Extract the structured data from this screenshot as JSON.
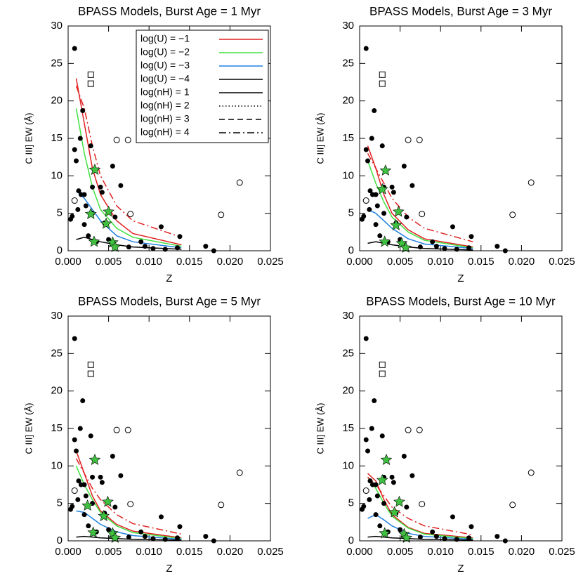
{
  "chart_data": [
    {
      "type": "scatter",
      "title": "BPASS Models, Burst Age = 1 Myr",
      "xlabel": "Z",
      "ylabel": "C III] EW (Å)",
      "xlim": [
        0,
        0.025
      ],
      "ylim": [
        0,
        30
      ],
      "xticks": [
        {
          "value": 0,
          "label": "0.000"
        },
        {
          "value": 0.005,
          "label": "0.005"
        },
        {
          "value": 0.01,
          "label": "0.010"
        },
        {
          "value": 0.015,
          "label": "0.015"
        },
        {
          "value": 0.02,
          "label": "0.020"
        },
        {
          "value": 0.025,
          "label": "0.025"
        }
      ],
      "yticks": [
        0,
        5,
        10,
        15,
        20,
        25,
        30
      ],
      "points": {
        "x": [
          0.0003,
          0.0005,
          0.0008,
          0.0008,
          0.001,
          0.0012,
          0.0013,
          0.0015,
          0.0016,
          0.0018,
          0.002,
          0.002,
          0.0022,
          0.0025,
          0.0028,
          0.003,
          0.003,
          0.0035,
          0.004,
          0.0042,
          0.0045,
          0.005,
          0.0055,
          0.0058,
          0.0065,
          0.0075,
          0.009,
          0.0095,
          0.0105,
          0.0115,
          0.012,
          0.0138,
          0.0135,
          0.017,
          0.018
        ],
        "values": [
          4.2,
          4.6,
          13.5,
          27,
          12,
          5.5,
          8,
          15,
          7.5,
          18.7,
          7.5,
          3.5,
          6,
          2,
          14,
          8.5,
          5,
          1.2,
          8.5,
          7.8,
          3.7,
          1.5,
          11.3,
          4.5,
          8.7,
          0.5,
          1.2,
          0.6,
          0.3,
          3.2,
          0.2,
          1.9,
          0.4,
          0.6,
          0
        ]
      },
      "open_points": {
        "x": [
          0.0212,
          0.0189,
          0.006,
          0.0074,
          0.0077,
          0.0008
        ],
        "values": [
          9.1,
          4.8,
          14.8,
          14.8,
          4.9,
          6.7
        ]
      },
      "squares": {
        "x": [
          0.0028,
          0.0028
        ],
        "values": [
          23.5,
          22.3
        ]
      },
      "stars": {
        "color": "#40c040",
        "x": [
          0.0033,
          0.0028,
          0.005,
          0.0047,
          0.0055,
          0.0058,
          0.0032
        ],
        "values": [
          10.8,
          4.9,
          5.2,
          3.6,
          1.1,
          0.5,
          1.2
        ]
      },
      "series": [
        {
          "color": "#e02020",
          "dash": "solid",
          "x": [
            0.001,
            0.002,
            0.003,
            0.004,
            0.006,
            0.008,
            0.014
          ],
          "values": [
            23,
            17,
            11,
            7.5,
            4,
            2.3,
            0.8
          ]
        },
        {
          "color": "#40e040",
          "dash": "solid",
          "x": [
            0.001,
            0.002,
            0.003,
            0.004,
            0.006,
            0.008,
            0.014
          ],
          "values": [
            19,
            13,
            8.5,
            5.5,
            3,
            1.8,
            0.6
          ]
        },
        {
          "color": "#2080e0",
          "dash": "solid",
          "x": [
            0.001,
            0.002,
            0.003,
            0.004,
            0.006,
            0.008,
            0.014
          ],
          "values": [
            8,
            7,
            5.5,
            4,
            2,
            1.2,
            0.4
          ]
        },
        {
          "color": "#000000",
          "dash": "solid",
          "x": [
            0.001,
            0.002,
            0.003,
            0.004,
            0.006,
            0.008,
            0.014
          ],
          "values": [
            1.5,
            1.8,
            1.5,
            1.2,
            0.8,
            0.5,
            0.2
          ]
        },
        {
          "color": "#e02020",
          "dash": "dashdot",
          "x": [
            0.001,
            0.002,
            0.003,
            0.004,
            0.006,
            0.008,
            0.014
          ],
          "values": [
            22,
            19,
            14,
            10,
            6,
            4,
            1.8
          ]
        }
      ],
      "legend": [
        {
          "label": "log(U) = −1",
          "color": "#e02020",
          "dash": "solid"
        },
        {
          "label": "log(U) = −2",
          "color": "#40e040",
          "dash": "solid"
        },
        {
          "label": "log(U) = −3",
          "color": "#2080e0",
          "dash": "solid"
        },
        {
          "label": "log(U) = −4",
          "color": "#000000",
          "dash": "solid"
        },
        {
          "label": "log(nH) = 1",
          "color": "#000000",
          "dash": "solid"
        },
        {
          "label": "log(nH) = 2",
          "color": "#000000",
          "dash": "dotted"
        },
        {
          "label": "log(nH) = 3",
          "color": "#000000",
          "dash": "dashed"
        },
        {
          "label": "log(nH) = 4",
          "color": "#000000",
          "dash": "dashdot"
        }
      ]
    },
    {
      "type": "scatter",
      "title": "BPASS Models, Burst Age = 3 Myr",
      "xlabel": "Z",
      "ylabel": "C III] EW (Å)",
      "xlim": [
        0,
        0.025
      ],
      "ylim": [
        0,
        30
      ],
      "xticks": [
        {
          "value": 0,
          "label": "0.000"
        },
        {
          "value": 0.005,
          "label": "0.005"
        },
        {
          "value": 0.01,
          "label": "0.010"
        },
        {
          "value": 0.015,
          "label": "0.015"
        },
        {
          "value": 0.02,
          "label": "0.020"
        },
        {
          "value": 0.025,
          "label": "0.025"
        }
      ],
      "yticks": [
        0,
        5,
        10,
        15,
        20,
        25,
        30
      ],
      "points": {
        "x": [
          0.0003,
          0.0005,
          0.0008,
          0.0008,
          0.001,
          0.0012,
          0.0013,
          0.0015,
          0.0016,
          0.0018,
          0.002,
          0.002,
          0.0022,
          0.0025,
          0.0028,
          0.003,
          0.003,
          0.0035,
          0.004,
          0.0042,
          0.0045,
          0.005,
          0.0055,
          0.0058,
          0.0065,
          0.0075,
          0.009,
          0.0095,
          0.0105,
          0.0115,
          0.012,
          0.0138,
          0.0135,
          0.017,
          0.018
        ],
        "values": [
          4.2,
          4.6,
          13.5,
          27,
          12,
          5.5,
          8,
          15,
          7.5,
          18.7,
          7.5,
          3.5,
          6,
          2,
          14,
          8.5,
          5,
          1.2,
          8.5,
          7.8,
          3.7,
          1.5,
          11.3,
          4.5,
          8.7,
          0.5,
          1.2,
          0.6,
          0.3,
          3.2,
          0.2,
          1.9,
          0.4,
          0.6,
          0
        ]
      },
      "open_points": {
        "x": [
          0.0212,
          0.0189,
          0.006,
          0.0074,
          0.0077,
          0.0008
        ],
        "values": [
          9.1,
          4.8,
          14.8,
          14.8,
          4.9,
          6.7
        ]
      },
      "squares": {
        "x": [
          0.0028,
          0.0028
        ],
        "values": [
          23.5,
          22.3
        ]
      },
      "stars": {
        "color": "#40c040",
        "x": [
          0.0032,
          0.0028,
          0.0048,
          0.0045,
          0.0052,
          0.0057,
          0.0031
        ],
        "values": [
          10.7,
          8.2,
          5.2,
          3.4,
          1,
          0.4,
          1.2
        ]
      },
      "series": [
        {
          "color": "#e02020",
          "dash": "solid",
          "x": [
            0.001,
            0.002,
            0.003,
            0.004,
            0.006,
            0.008,
            0.014
          ],
          "values": [
            14,
            11,
            7.5,
            5,
            2.8,
            1.6,
            0.5
          ]
        },
        {
          "color": "#40e040",
          "dash": "solid",
          "x": [
            0.001,
            0.002,
            0.003,
            0.004,
            0.006,
            0.008,
            0.014
          ],
          "values": [
            12,
            9,
            6.5,
            4.5,
            2.5,
            1.4,
            0.4
          ]
        },
        {
          "color": "#2080e0",
          "dash": "solid",
          "x": [
            0.001,
            0.002,
            0.003,
            0.004,
            0.006,
            0.008,
            0.014
          ],
          "values": [
            5.5,
            5,
            4,
            3,
            1.6,
            0.9,
            0.3
          ]
        },
        {
          "color": "#000000",
          "dash": "solid",
          "x": [
            0.001,
            0.002,
            0.003,
            0.004,
            0.006,
            0.008,
            0.014
          ],
          "values": [
            1,
            1.2,
            1,
            0.8,
            0.5,
            0.3,
            0.1
          ]
        },
        {
          "color": "#e02020",
          "dash": "dashdot",
          "x": [
            0.001,
            0.002,
            0.003,
            0.004,
            0.006,
            0.008,
            0.014
          ],
          "values": [
            13,
            11,
            9,
            7,
            4.5,
            3,
            1.2
          ]
        }
      ]
    },
    {
      "type": "scatter",
      "title": "BPASS Models, Burst Age = 5 Myr",
      "xlabel": "Z",
      "ylabel": "C III] EW (Å)",
      "xlim": [
        0,
        0.025
      ],
      "ylim": [
        0,
        30
      ],
      "xticks": [
        {
          "value": 0,
          "label": "0.000"
        },
        {
          "value": 0.005,
          "label": "0.005"
        },
        {
          "value": 0.01,
          "label": "0.010"
        },
        {
          "value": 0.015,
          "label": "0.015"
        },
        {
          "value": 0.02,
          "label": "0.020"
        },
        {
          "value": 0.025,
          "label": "0.025"
        }
      ],
      "yticks": [
        0,
        5,
        10,
        15,
        20,
        25,
        30
      ],
      "points": {
        "x": [
          0.0003,
          0.0005,
          0.0008,
          0.0008,
          0.001,
          0.0012,
          0.0013,
          0.0015,
          0.0016,
          0.0018,
          0.002,
          0.002,
          0.0022,
          0.0025,
          0.0028,
          0.003,
          0.003,
          0.0035,
          0.004,
          0.0042,
          0.0045,
          0.005,
          0.0055,
          0.0058,
          0.0065,
          0.0075,
          0.009,
          0.0095,
          0.0105,
          0.0115,
          0.012,
          0.0138,
          0.0135,
          0.017,
          0.018
        ],
        "values": [
          4.2,
          4.6,
          13.5,
          27,
          12,
          5.5,
          8,
          15,
          7.5,
          18.7,
          7.5,
          3.5,
          6,
          2,
          14,
          8.5,
          5,
          1.2,
          8.5,
          7.8,
          3.7,
          1.5,
          11.3,
          4.5,
          8.7,
          0.5,
          1.2,
          0.6,
          0.3,
          3.2,
          0.2,
          1.9,
          0.4,
          0.6,
          0
        ]
      },
      "open_points": {
        "x": [
          0.0212,
          0.0189,
          0.006,
          0.0074,
          0.0077,
          0.0008
        ],
        "values": [
          9.1,
          4.8,
          14.8,
          14.8,
          4.9,
          6.7
        ]
      },
      "squares": {
        "x": [
          0.0028,
          0.0028
        ],
        "values": [
          23.5,
          22.3
        ]
      },
      "stars": {
        "color": "#40c040",
        "x": [
          0.0033,
          0.0024,
          0.0049,
          0.0044,
          0.0055,
          0.0058,
          0.0031
        ],
        "values": [
          10.8,
          4.7,
          5.2,
          3.3,
          1,
          0.4,
          1.1
        ]
      },
      "series": [
        {
          "color": "#e02020",
          "dash": "solid",
          "x": [
            0.001,
            0.002,
            0.003,
            0.004,
            0.006,
            0.008,
            0.014
          ],
          "values": [
            12,
            9,
            6,
            4,
            2.2,
            1.3,
            0.4
          ]
        },
        {
          "color": "#40e040",
          "dash": "solid",
          "x": [
            0.001,
            0.002,
            0.003,
            0.004,
            0.006,
            0.008,
            0.014
          ],
          "values": [
            10,
            7.5,
            5.5,
            3.8,
            2,
            1.1,
            0.3
          ]
        },
        {
          "color": "#2080e0",
          "dash": "solid",
          "x": [
            0.001,
            0.002,
            0.003,
            0.004,
            0.006,
            0.008,
            0.014
          ],
          "values": [
            4,
            3.8,
            3,
            2.2,
            1.2,
            0.7,
            0.2
          ]
        },
        {
          "color": "#000000",
          "dash": "solid",
          "x": [
            0.001,
            0.002,
            0.003,
            0.004,
            0.006,
            0.008,
            0.014
          ],
          "values": [
            0.5,
            0.6,
            0.5,
            0.4,
            0.3,
            0.2,
            0.1
          ]
        },
        {
          "color": "#e02020",
          "dash": "dashdot",
          "x": [
            0.001,
            0.002,
            0.003,
            0.004,
            0.006,
            0.008,
            0.014
          ],
          "values": [
            11,
            9,
            7,
            5.5,
            3.5,
            2.3,
            0.9
          ]
        }
      ]
    },
    {
      "type": "scatter",
      "title": "BPASS Models, Burst Age = 10 Myr",
      "xlabel": "Z",
      "ylabel": "C III] EW (Å)",
      "xlim": [
        0,
        0.025
      ],
      "ylim": [
        0,
        30
      ],
      "xticks": [
        {
          "value": 0,
          "label": "0.000"
        },
        {
          "value": 0.005,
          "label": "0.005"
        },
        {
          "value": 0.01,
          "label": "0.010"
        },
        {
          "value": 0.015,
          "label": "0.015"
        },
        {
          "value": 0.02,
          "label": "0.020"
        },
        {
          "value": 0.025,
          "label": "0.025"
        }
      ],
      "yticks": [
        0,
        5,
        10,
        15,
        20,
        25,
        30
      ],
      "points": {
        "x": [
          0.0003,
          0.0005,
          0.0008,
          0.0008,
          0.001,
          0.0012,
          0.0013,
          0.0015,
          0.0016,
          0.0018,
          0.002,
          0.002,
          0.0022,
          0.0025,
          0.0028,
          0.003,
          0.003,
          0.0035,
          0.004,
          0.0042,
          0.0045,
          0.005,
          0.0055,
          0.0058,
          0.0065,
          0.0075,
          0.009,
          0.0095,
          0.0105,
          0.0115,
          0.012,
          0.0138,
          0.0135,
          0.017,
          0.018
        ],
        "values": [
          4.2,
          4.6,
          13.5,
          27,
          12,
          5.5,
          8,
          15,
          7.5,
          18.7,
          7.5,
          3.5,
          6,
          2,
          14,
          8.5,
          5,
          1.2,
          8.5,
          7.8,
          3.7,
          1.5,
          11.3,
          4.5,
          8.7,
          0.5,
          1.2,
          0.6,
          0.3,
          3.2,
          0.2,
          1.9,
          0.4,
          0.6,
          0
        ]
      },
      "open_points": {
        "x": [
          0.0212,
          0.0189,
          0.006,
          0.0074,
          0.0077,
          0.0008
        ],
        "values": [
          9.1,
          4.8,
          14.8,
          14.8,
          4.9,
          6.7
        ]
      },
      "squares": {
        "x": [
          0.0028,
          0.0028
        ],
        "values": [
          23.5,
          22.3
        ]
      },
      "stars": {
        "color": "#40c040",
        "x": [
          0.0033,
          0.0028,
          0.0049,
          0.0043,
          0.0055,
          0.0058,
          0.0031
        ],
        "values": [
          10.8,
          8.1,
          5.2,
          3.8,
          0.9,
          0.4,
          1
        ]
      },
      "series": [
        {
          "color": "#e02020",
          "dash": "solid",
          "x": [
            0.001,
            0.002,
            0.003,
            0.004,
            0.006,
            0.008,
            0.014
          ],
          "values": [
            9,
            8,
            5.5,
            3.5,
            1.8,
            1,
            0.4
          ]
        },
        {
          "color": "#40e040",
          "dash": "solid",
          "x": [
            0.001,
            0.002,
            0.003,
            0.004,
            0.006,
            0.008,
            0.014
          ],
          "values": [
            8.5,
            7,
            5,
            3.3,
            1.7,
            0.9,
            0.3
          ]
        },
        {
          "color": "#2080e0",
          "dash": "solid",
          "x": [
            0.001,
            0.002,
            0.003,
            0.004,
            0.006,
            0.008,
            0.014
          ],
          "values": [
            3,
            3.5,
            2.8,
            2,
            1,
            0.6,
            0.2
          ]
        },
        {
          "color": "#000000",
          "dash": "solid",
          "x": [
            0.001,
            0.002,
            0.003,
            0.004,
            0.006,
            0.008,
            0.014
          ],
          "values": [
            0.5,
            0.6,
            0.5,
            0.4,
            0.3,
            0.2,
            0.1
          ]
        },
        {
          "color": "#e02020",
          "dash": "dashdot",
          "x": [
            0.001,
            0.002,
            0.003,
            0.004,
            0.006,
            0.008,
            0.014
          ],
          "values": [
            8.5,
            7.5,
            6,
            4.5,
            3,
            2,
            0.8
          ]
        }
      ]
    }
  ]
}
